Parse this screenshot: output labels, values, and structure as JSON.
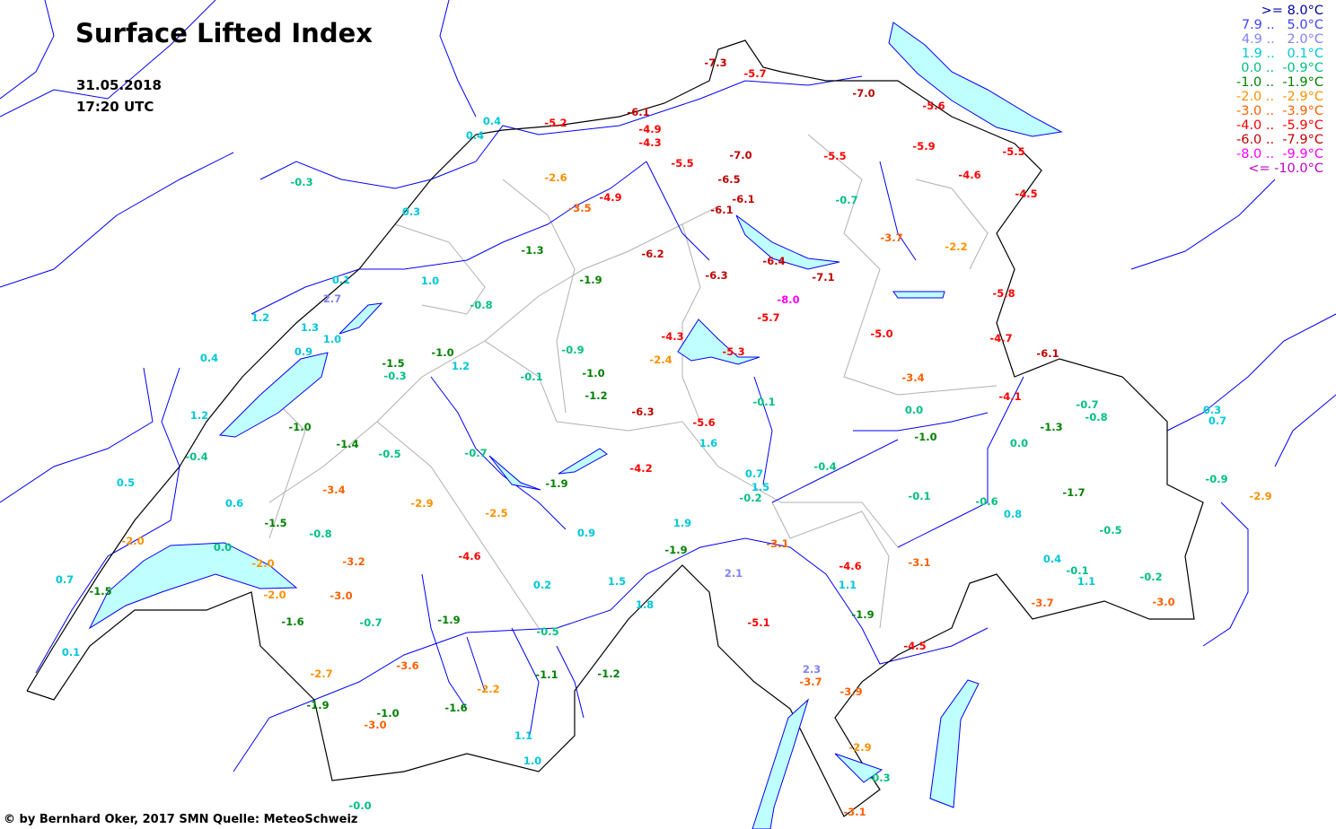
{
  "title": "Surface Lifted Index",
  "date": "31.05.2018",
  "time": "17:20 UTC",
  "credit": "© by Bernhard Oker, 2017  SMN Quelle: MeteoSchweiz",
  "legend": [
    {
      "label": ">= 8.0°C",
      "color": "#0000a0"
    },
    {
      "label": "7.9 ..   5.0°C",
      "color": "#4040ff"
    },
    {
      "label": "4.9 ..   2.0°C",
      "color": "#8080ff"
    },
    {
      "label": "1.9 ..   0.1°C",
      "color": "#00c8d8"
    },
    {
      "label": "0.0 ..  -0.9°C",
      "color": "#00c080"
    },
    {
      "label": "-1.0 ..  -1.9°C",
      "color": "#008000"
    },
    {
      "label": "-2.0 ..  -2.9°C",
      "color": "#ff9000"
    },
    {
      "label": "-3.0 ..  -3.9°C",
      "color": "#ff6000"
    },
    {
      "label": "-4.0 ..  -5.9°C",
      "color": "#ff0000"
    },
    {
      "label": "-6.0 ..  -7.9°C",
      "color": "#c00000"
    },
    {
      "label": "-8.0 ..  -9.9°C",
      "color": "#ff00ff"
    },
    {
      "label": "<= -10.0°C",
      "color": "#c000c0"
    }
  ],
  "map_colors": {
    "rivers": "#0000ff",
    "border": "#000000",
    "cantons": "#b0b0b0",
    "lakes": "#c0ffff"
  },
  "values": [
    "0.4",
    "0.4",
    "-5.2",
    "-0.3",
    "0.3",
    "-2.6",
    "-3.5",
    "-4.9",
    "-1.3",
    "-1.9",
    "0.1",
    "1.0",
    "2.7",
    "-0.8",
    "1.2",
    "1.3",
    "1.0",
    "0.9",
    "0.4",
    "-1.0",
    "1.2",
    "-1.5",
    "-0.3",
    "-0.9",
    "-1.0",
    "-0.1",
    "-1.2",
    "1.2",
    "-1.0",
    "-1.4",
    "-0.4",
    "-0.5",
    "-0.7",
    "-1.9",
    "0.5",
    "-3.4",
    "0.6",
    "-2.9",
    "-2.5",
    "-1.5",
    "-0.8",
    "-2.0",
    "0.0",
    "-2.0",
    "-3.2",
    "-4.6",
    "0.9",
    "0.7",
    "-1.5",
    "-2.0",
    "-3.0",
    "0.2",
    "1.5",
    "-1.6",
    "-0.7",
    "-1.9",
    "1.8",
    "0.1",
    "-0.5",
    "-2.7",
    "-3.6",
    "-1.1",
    "-1.2",
    "-2.2",
    "-1.9",
    "-1.0",
    "-1.6",
    "-3.0",
    "1.1",
    "1.0",
    "-0.0",
    "-7.3",
    "-5.7",
    "-7.0",
    "-5.6",
    "-6.1",
    "-4.9",
    "-4.3",
    "-5.5",
    "-7.0",
    "-5.5",
    "-5.9",
    "-5.5",
    "-4.6",
    "-4.5",
    "-6.5",
    "-6.1",
    "-6.1",
    "-0.7",
    "-3.7",
    "-2.2",
    "-6.2",
    "-6.4",
    "-7.1",
    "-6.3",
    "-8.0",
    "-5.8",
    "-5.7",
    "-4.3",
    "-5.0",
    "-4.7",
    "-6.1",
    "-2.4",
    "-5.3",
    "-3.4",
    "-4.1",
    "-6.3",
    "-5.6",
    "-0.1",
    "0.0",
    "-0.7",
    "-0.8",
    "0.3",
    "0.7",
    "1.6",
    "-1.0",
    "0.0",
    "-1.3",
    "-4.2",
    "-0.4",
    "0.7",
    "1.5",
    "-0.2",
    "1.9",
    "-0.9",
    "-2.9",
    "-0.1",
    "-0.6",
    "-1.7",
    "0.8",
    "-1.9",
    "-3.1",
    "-0.5",
    "2.1",
    "-4.6",
    "-3.1",
    "0.4",
    "-0.1",
    "1.1",
    "-0.2",
    "1.1",
    "-3.7",
    "-3.0",
    "-5.1",
    "-1.9",
    "-4.5",
    "2.3",
    "-3.7",
    "-3.9",
    "-2.9",
    "-0.3",
    "-3.1"
  ]
}
